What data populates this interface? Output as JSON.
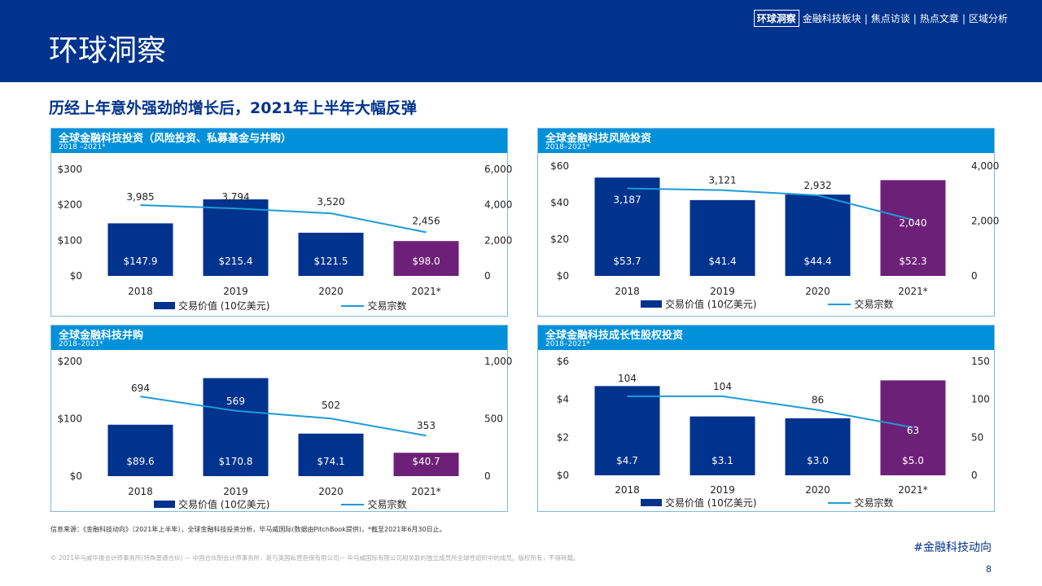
{
  "header": {
    "page_title": "环球洞察",
    "nav_active": "环球洞察",
    "nav_items": [
      "金融科技板块",
      "焦点访谈",
      "热点文章",
      "区域分析"
    ]
  },
  "subtitle": "历经上年意外强劲的增长后，2021年上半年大幅反弹",
  "legend": {
    "bar": "交易价值 (10亿美元)",
    "line": "交易宗数"
  },
  "colors": {
    "brand": "#00338D",
    "bar": "#00338D",
    "highlight": "#6D2077",
    "line": "#1E9BD7",
    "header": "#0091DA"
  },
  "footer": {
    "source": "信息来源：《金融科技动向》（2021年上半年），全球金融科技投资分析，毕马威国际(数据由PitchBook提供)，*截至2021年6月30日止。",
    "copyright": "© 2021毕马威华振会计师事务所(特殊普通合伙) — 中国合伙制会计师事务所，是与英国私营担保有限公司— 毕马威国际有限公司相关联的独立成员所全球性组织中的成员。版权所有，不得转载。",
    "hashtag": "#金融科技动向",
    "page_number": "8"
  },
  "chart_data": [
    {
      "type": "bar",
      "title": "全球金融科技投资（风险投资、私募基金与并购）",
      "subtitle": "2018 –2021*",
      "categories": [
        "2018",
        "2019",
        "2020",
        "2021*"
      ],
      "y_ticks": [
        "$0",
        "$100",
        "$200",
        "$300"
      ],
      "y_ticks_right": [
        "0",
        "2,000",
        "4,000",
        "6,000"
      ],
      "ylim": [
        0,
        300
      ],
      "ylim_right": [
        0,
        6000
      ],
      "series": [
        {
          "name": "交易价值 (10亿美元)",
          "values": [
            147.9,
            215.4,
            121.5,
            98.0
          ],
          "labels": [
            "$147.9",
            "$215.4",
            "$121.5",
            "$98.0"
          ]
        },
        {
          "name": "交易宗数",
          "values": [
            3985,
            3794,
            3520,
            2456
          ],
          "labels": [
            "3,985",
            "3,794",
            "3,520",
            "2,456"
          ]
        }
      ],
      "highlight_index": 3
    },
    {
      "type": "bar",
      "title": "全球金融科技风险投资",
      "subtitle": "2018–2021*",
      "categories": [
        "2018",
        "2019",
        "2020",
        "2021*"
      ],
      "y_ticks": [
        "$0",
        "$20",
        "$40",
        "$60"
      ],
      "y_ticks_right": [
        "0",
        "2,000",
        "4,000"
      ],
      "ylim": [
        0,
        60
      ],
      "ylim_right": [
        0,
        4000
      ],
      "series": [
        {
          "name": "交易价值 (10亿美元)",
          "values": [
            53.7,
            41.4,
            44.4,
            52.3
          ],
          "labels": [
            "$53.7",
            "$41.4",
            "$44.4",
            "$52.3"
          ]
        },
        {
          "name": "交易宗数",
          "values": [
            3187,
            3121,
            2932,
            2040
          ],
          "labels": [
            "3,187",
            "3,121",
            "2,932",
            "2,040"
          ]
        }
      ],
      "highlight_index": 3
    },
    {
      "type": "bar",
      "title": "全球金融科技并购",
      "subtitle": "2018–2021*",
      "categories": [
        "2018",
        "2019",
        "2020",
        "2021*"
      ],
      "y_ticks": [
        "$0",
        "$100",
        "$200"
      ],
      "y_ticks_right": [
        "0",
        "500",
        "1,000"
      ],
      "ylim": [
        0,
        200
      ],
      "ylim_right": [
        0,
        1000
      ],
      "series": [
        {
          "name": "交易价值 (10亿美元)",
          "values": [
            89.6,
            170.8,
            74.1,
            40.7
          ],
          "labels": [
            "$89.6",
            "$170.8",
            "$74.1",
            "$40.7"
          ]
        },
        {
          "name": "交易宗数",
          "values": [
            694,
            569,
            502,
            353
          ],
          "labels": [
            "694",
            "569",
            "502",
            "353"
          ]
        }
      ],
      "highlight_index": 3
    },
    {
      "type": "bar",
      "title": "全球金融科技成长性股权投资",
      "subtitle": "2018–2021*",
      "categories": [
        "2018",
        "2019",
        "2020",
        "2021*"
      ],
      "y_ticks": [
        "$0",
        "$2",
        "$4",
        "$6"
      ],
      "y_ticks_right": [
        "0",
        "50",
        "100",
        "150"
      ],
      "ylim": [
        0,
        6
      ],
      "ylim_right": [
        0,
        150
      ],
      "series": [
        {
          "name": "交易价值 (10亿美元)",
          "values": [
            4.7,
            3.1,
            3.0,
            5.0
          ],
          "labels": [
            "$4.7",
            "$3.1",
            "$3.0",
            "$5.0"
          ]
        },
        {
          "name": "交易宗数",
          "values": [
            104,
            104,
            86,
            63
          ],
          "labels": [
            "104",
            "104",
            "86",
            "63"
          ]
        }
      ],
      "highlight_index": 3
    }
  ]
}
